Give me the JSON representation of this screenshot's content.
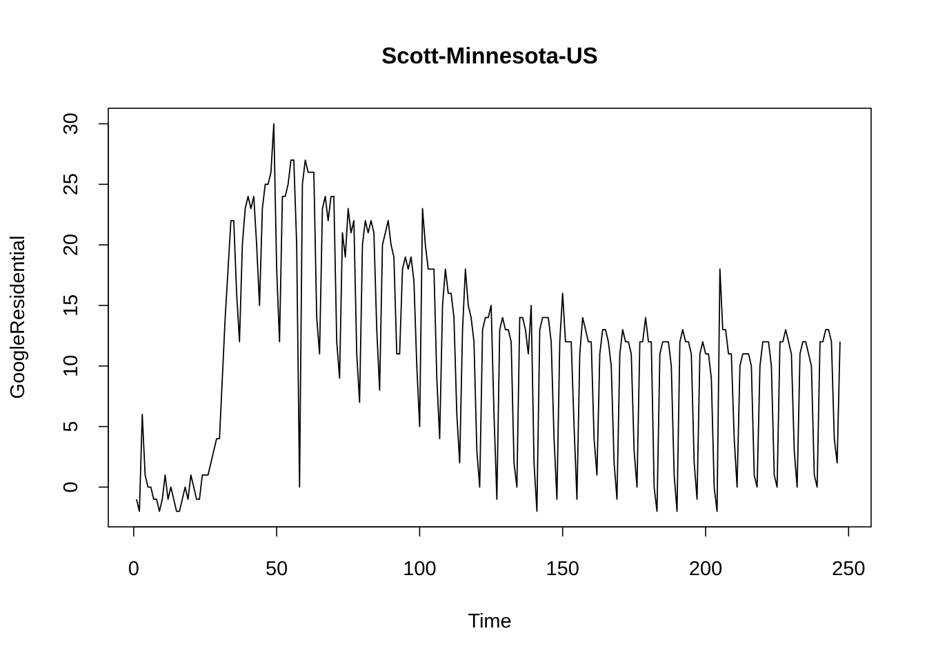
{
  "chart_data": {
    "type": "line",
    "title": "Scott-Minnesota-US",
    "xlabel": "Time",
    "ylabel": "GoogleResidential",
    "xlim": [
      1,
      248
    ],
    "ylim": [
      -2,
      30
    ],
    "x_ticks": [
      0,
      50,
      100,
      150,
      200,
      250
    ],
    "y_ticks": [
      0,
      5,
      10,
      15,
      20,
      25,
      30
    ],
    "grid": false,
    "legend": "none",
    "line_color": "#000000",
    "series": [
      {
        "x_start": 1,
        "values": [
          -1,
          -2,
          6,
          1,
          0,
          0,
          -1,
          -1,
          -2,
          -1,
          1,
          -1,
          0,
          -1,
          -2,
          -2,
          -1,
          0,
          -1,
          1,
          0,
          -1,
          -1,
          1,
          1,
          1,
          2,
          3,
          4,
          4,
          9,
          14,
          18,
          22,
          22,
          16,
          12,
          20,
          23,
          24,
          23,
          24,
          20,
          15,
          23,
          25,
          25,
          26,
          30,
          18,
          12,
          24,
          24,
          25,
          27,
          27,
          20,
          0,
          25,
          27,
          26,
          26,
          26,
          14,
          11,
          23,
          24,
          22,
          24,
          24,
          12,
          9,
          21,
          19,
          23,
          21,
          22,
          11,
          7,
          20,
          22,
          21,
          22,
          21,
          13,
          8,
          20,
          21,
          22,
          20,
          19,
          11,
          11,
          18,
          19,
          18,
          19,
          17,
          10,
          5,
          23,
          20,
          18,
          18,
          18,
          9,
          4,
          15,
          18,
          16,
          16,
          14,
          6,
          2,
          13,
          18,
          15,
          14,
          12,
          3,
          0,
          13,
          14,
          14,
          15,
          6,
          -1,
          13,
          14,
          13,
          13,
          12,
          2,
          0,
          14,
          14,
          13,
          11,
          15,
          2,
          -2,
          13,
          14,
          14,
          14,
          12,
          4,
          -1,
          12,
          16,
          12,
          12,
          12,
          5,
          -1,
          11,
          14,
          13,
          12,
          12,
          4,
          1,
          11,
          13,
          13,
          12,
          10,
          2,
          -1,
          11,
          13,
          12,
          12,
          11,
          3,
          0,
          12,
          12,
          14,
          12,
          12,
          0,
          -2,
          11,
          12,
          12,
          12,
          10,
          1,
          -2,
          12,
          13,
          12,
          12,
          11,
          2,
          -1,
          11,
          12,
          11,
          11,
          9,
          0,
          -2,
          18,
          13,
          13,
          11,
          11,
          4,
          0,
          10,
          11,
          11,
          11,
          10,
          1,
          0,
          10,
          12,
          12,
          12,
          10,
          1,
          0,
          12,
          12,
          13,
          12,
          11,
          3,
          0,
          11,
          12,
          12,
          11,
          10,
          1,
          0,
          12,
          12,
          13,
          13,
          12,
          4,
          2,
          12
        ]
      }
    ]
  }
}
